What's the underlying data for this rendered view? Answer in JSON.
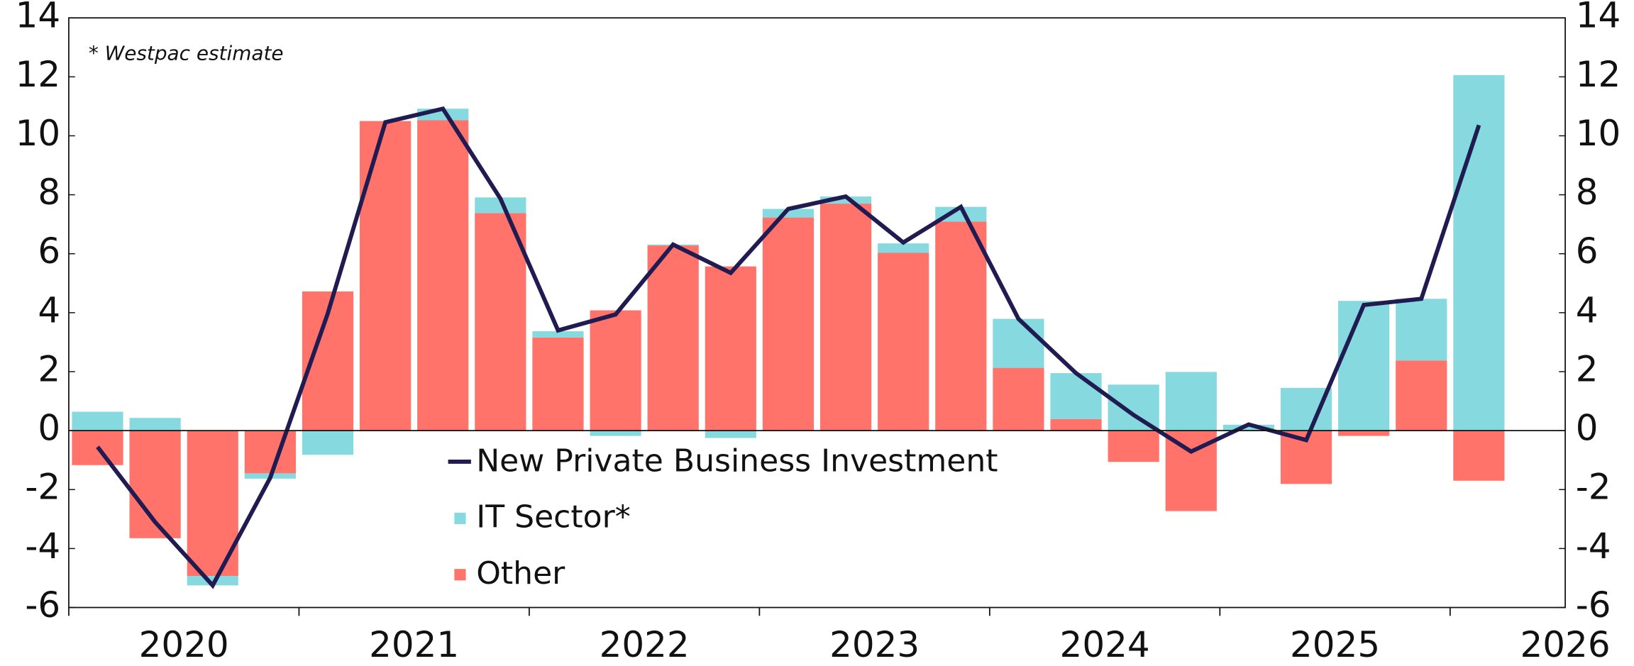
{
  "chart_data": {
    "type": "bar",
    "annotation": "* Westpac estimate",
    "categories": [
      null,
      null,
      null,
      null,
      null,
      null,
      null,
      null,
      null,
      null,
      null,
      null,
      null,
      null,
      null,
      null,
      null,
      null,
      null,
      null,
      null,
      null,
      null,
      null,
      null,
      null
    ],
    "years": [
      "2020",
      "2021",
      "2022",
      "2023",
      "2024",
      "2025",
      "2026"
    ],
    "series": [
      {
        "name": "New Private Business Investment",
        "kind": "line",
        "color": "#201c52",
        "values": [
          -0.55,
          -3.1,
          -5.25,
          -1.6,
          3.97,
          10.46,
          10.92,
          7.87,
          3.4,
          3.94,
          6.31,
          5.35,
          7.52,
          7.94,
          6.38,
          7.59,
          3.79,
          1.95,
          0.53,
          -0.71,
          0.21,
          -0.32,
          4.26,
          4.47,
          10.36,
          null
        ]
      },
      {
        "name": "IT Sector*",
        "kind": "bar",
        "color": "#86dadf",
        "values": [
          0.64,
          0.43,
          -0.32,
          -0.18,
          -0.82,
          0,
          0.39,
          0.53,
          0.21,
          -0.18,
          0.03,
          -0.25,
          0.29,
          0.24,
          0.32,
          0.5,
          1.66,
          1.56,
          1.56,
          1.99,
          0.2,
          1.45,
          4.4,
          2.09,
          12.06,
          null
        ]
      },
      {
        "name": "Other",
        "kind": "bar",
        "color": "#ff736a",
        "values": [
          -1.17,
          -3.65,
          -4.93,
          -1.45,
          4.72,
          10.5,
          10.53,
          7.38,
          3.16,
          4.08,
          6.28,
          5.57,
          7.23,
          7.7,
          6.03,
          7.09,
          2.13,
          0.39,
          -1.06,
          -2.73,
          0,
          -1.81,
          -0.18,
          2.38,
          -1.7,
          null
        ]
      }
    ],
    "ylim": [
      -6,
      14
    ],
    "yticks": [
      -6,
      -4,
      -2,
      0,
      2,
      4,
      6,
      8,
      10,
      12,
      14
    ]
  }
}
